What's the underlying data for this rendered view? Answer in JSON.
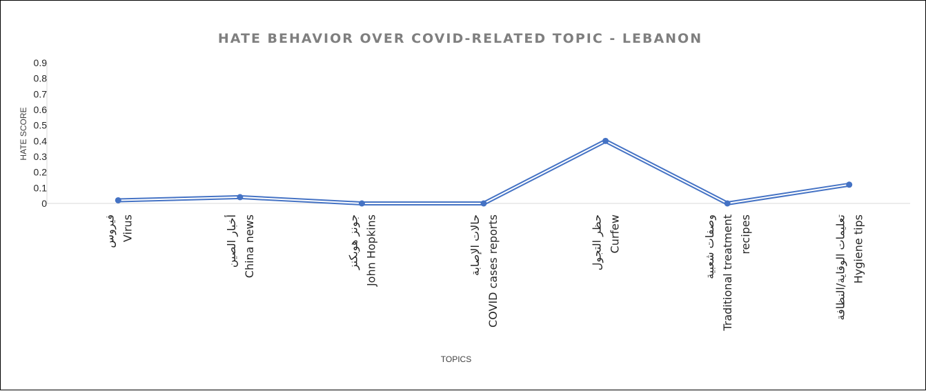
{
  "chart_data": {
    "type": "line",
    "title": "HATE BEHAVIOR OVER COVID-RELATED TOPIC - LEBANON",
    "xlabel": "TOPICS",
    "ylabel": "HATE SCORE",
    "ylim": [
      0,
      0.9
    ],
    "yticks": [
      "0",
      "0.1",
      "0.2",
      "0.3",
      "0.4",
      "0.5",
      "0.6",
      "0.7",
      "0.8",
      "0.9"
    ],
    "grid": false,
    "legend": "none",
    "categories": [
      [
        "فيروس",
        "Virus"
      ],
      [
        "أخبار الصين",
        "China news"
      ],
      [
        "جونز هوبكنز",
        "John Hopkins"
      ],
      [
        "حالات الإصابة",
        "COVID cases reports"
      ],
      [
        "حظر التجول",
        "Curfew"
      ],
      [
        "وصفات شعبية",
        "Traditional treatment",
        "recipes"
      ],
      [
        "تعليمات الوقاية/النظافة",
        "Hygiene tips"
      ]
    ],
    "series": [
      {
        "values": [
          0.02,
          0.04,
          0.0,
          0.0,
          0.4,
          0.0,
          0.12
        ],
        "color": "#4472c4"
      }
    ]
  }
}
